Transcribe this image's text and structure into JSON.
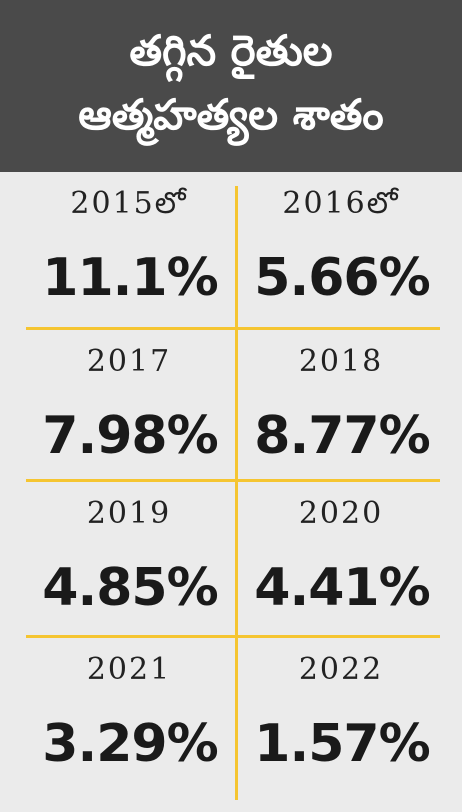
{
  "header": {
    "title": [
      "తగ్గిన రైతుల",
      "ఆత్మహత్యల శాతం"
    ]
  },
  "cells": [
    {
      "year": "2015లో",
      "value": "11.1%"
    },
    {
      "year": "2016లో",
      "value": "5.66%"
    },
    {
      "year": "2017",
      "value": "7.98%"
    },
    {
      "year": "2018",
      "value": "8.77%"
    },
    {
      "year": "2019",
      "value": "4.85%"
    },
    {
      "year": "2020",
      "value": "4.41%"
    },
    {
      "year": "2021",
      "value": "3.29%"
    },
    {
      "year": "2022",
      "value": "1.57%"
    }
  ]
}
